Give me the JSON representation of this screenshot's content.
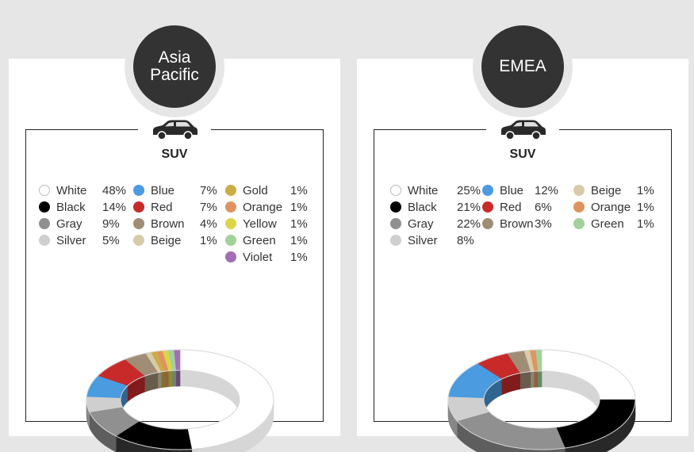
{
  "chart_data": [
    {
      "type": "pie",
      "region": "Asia\nPacific",
      "subtitle": "SUV",
      "labels": [
        "White",
        "Black",
        "Gray",
        "Silver",
        "Blue",
        "Red",
        "Brown",
        "Beige",
        "Gold",
        "Orange",
        "Yellow",
        "Green",
        "Violet"
      ],
      "values": [
        48,
        14,
        9,
        5,
        7,
        7,
        4,
        1,
        1,
        1,
        1,
        1,
        1
      ],
      "value_labels": [
        "48%",
        "14%",
        "9%",
        "5%",
        "7%",
        "7%",
        "4%",
        "1%",
        "1%",
        "1%",
        "1%",
        "1%",
        "1%"
      ],
      "colors": [
        "#ffffff",
        "#000000",
        "#909090",
        "#cfcfcf",
        "#4a9be0",
        "#c82a2a",
        "#a08d76",
        "#d8cba9",
        "#ccac48",
        "#df9360",
        "#dcd54a",
        "#a3d19b",
        "#a26eb6"
      ]
    },
    {
      "type": "pie",
      "region": "EMEA",
      "subtitle": "SUV",
      "labels": [
        "White",
        "Black",
        "Gray",
        "Silver",
        "Blue",
        "Red",
        "Brown",
        "Beige",
        "Orange",
        "Green"
      ],
      "values": [
        25,
        21,
        22,
        8,
        12,
        6,
        3,
        1,
        1,
        1
      ],
      "value_labels": [
        "25%",
        "21%",
        "22%",
        "8%",
        "12%",
        "6%",
        "3%",
        "1%",
        "1%",
        "1%"
      ],
      "colors": [
        "#ffffff",
        "#000000",
        "#909090",
        "#cfcfcf",
        "#4a9be0",
        "#c82a2a",
        "#a08d76",
        "#d8cba9",
        "#df9360",
        "#a3d19b"
      ]
    }
  ],
  "icons": {
    "vehicle": "suv-car-icon"
  }
}
